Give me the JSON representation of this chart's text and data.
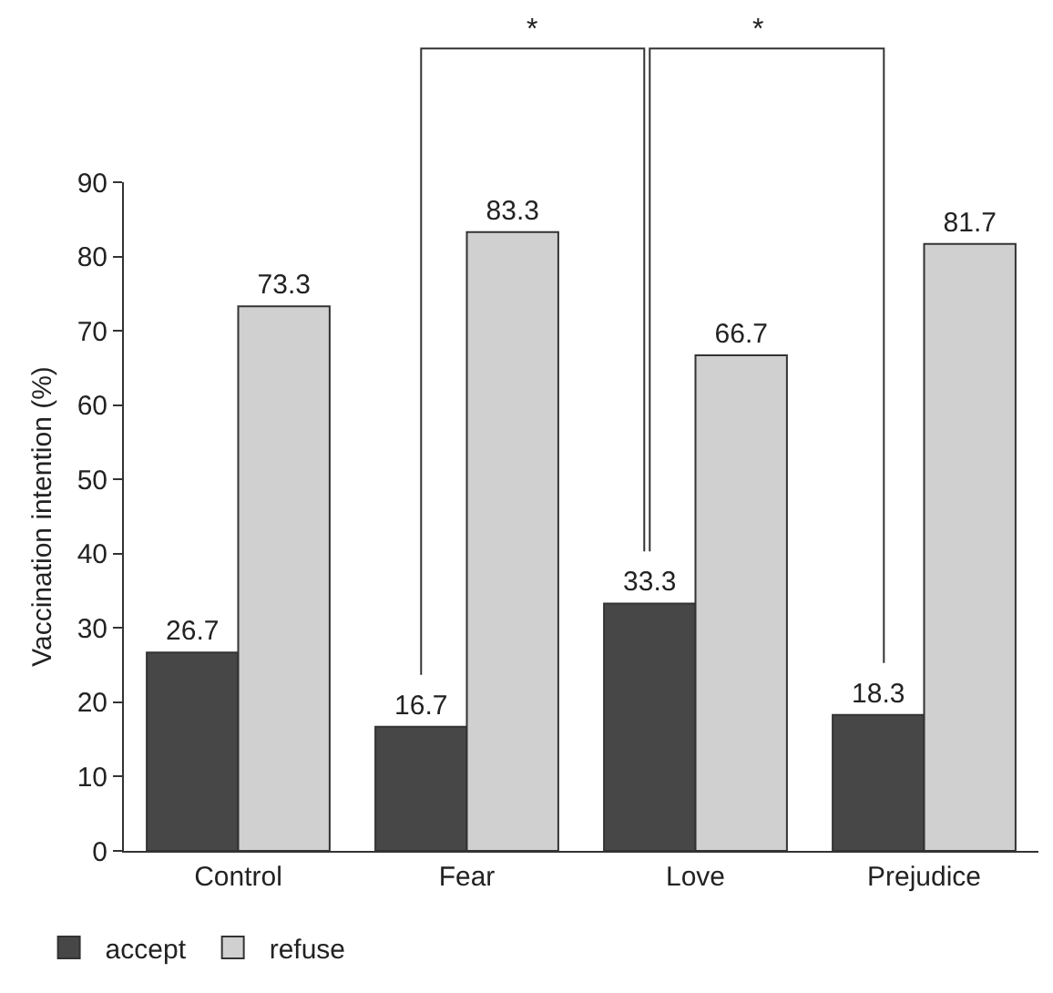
{
  "chart_data": {
    "type": "bar",
    "ylabel": "Vaccination intention (%)",
    "categories": [
      "Control",
      "Fear",
      "Love",
      "Prejudice"
    ],
    "series": [
      {
        "name": "accept",
        "color": "#474747",
        "values": [
          26.7,
          16.7,
          33.3,
          18.3
        ]
      },
      {
        "name": "refuse",
        "color": "#d0d0d0",
        "values": [
          73.3,
          83.3,
          66.7,
          81.7
        ]
      }
    ],
    "ylim": [
      0,
      90
    ],
    "yticks": [
      0,
      10,
      20,
      30,
      40,
      50,
      60,
      70,
      80,
      90
    ],
    "grid": false,
    "legend": "bottom left",
    "data_labels": true,
    "annotations": [
      "*",
      "*"
    ]
  }
}
